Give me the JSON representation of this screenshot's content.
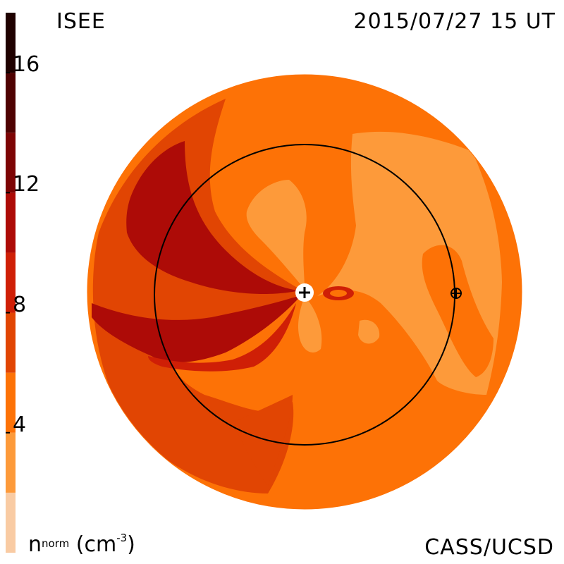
{
  "header": {
    "observatory": "ISEE",
    "timestamp": "2015/07/27 15 UT"
  },
  "footer": {
    "credit": "CASS/UCSD",
    "colorbar_label_base": "n",
    "colorbar_label_sup": "norm",
    "colorbar_label_units_pre": "(cm",
    "colorbar_label_units_sup": "-3",
    "colorbar_label_units_post": ")"
  },
  "colorbar": {
    "tick_labels": [
      "16",
      "12",
      "8",
      "4"
    ],
    "tick_values": [
      16,
      12,
      8,
      4
    ],
    "range": [
      0,
      18
    ],
    "bands": [
      {
        "from": 0,
        "to": 2,
        "color": "#f9cba3"
      },
      {
        "from": 2,
        "to": 4,
        "color": "#fd9a3a"
      },
      {
        "from": 4,
        "to": 6,
        "color": "#fd7206"
      },
      {
        "from": 6,
        "to": 8,
        "color": "#e14503"
      },
      {
        "from": 8,
        "to": 10,
        "color": "#cf1f06"
      },
      {
        "from": 10,
        "to": 12,
        "color": "#ad0b07"
      },
      {
        "from": 12,
        "to": 14,
        "color": "#7d0404"
      },
      {
        "from": 14,
        "to": 16,
        "color": "#4f0202"
      },
      {
        "from": 16,
        "to": 18,
        "color": "#1f0100"
      }
    ]
  },
  "map": {
    "sun_marker": "plus-in-circle-icon",
    "earth_marker": "circled-plus-icon",
    "orbit": "earth-orbit-circle"
  }
}
